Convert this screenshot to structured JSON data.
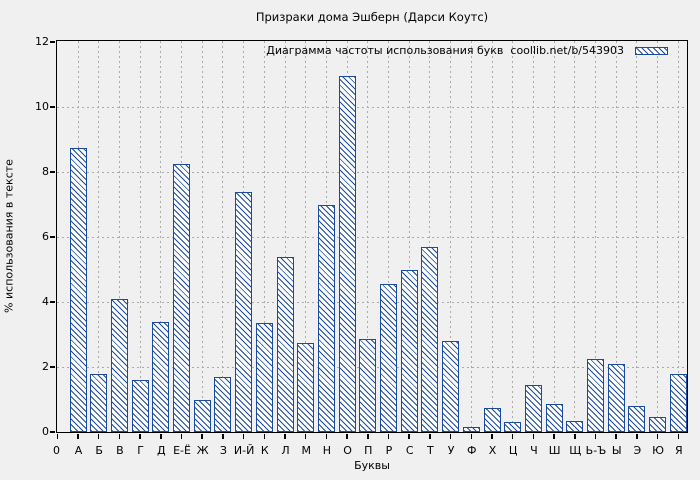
{
  "chart_data": {
    "type": "bar",
    "title": "Призраки дома Эшберн (Дарси Коутс)",
    "legend_label": "Диаграмма частоты использования букв  coollib.net/b/543903",
    "legend_position": "top-right-inside",
    "xlabel": "Буквы",
    "ylabel": "% использования в тексте",
    "ylim": [
      0,
      12
    ],
    "y_ticks": [
      0,
      2,
      4,
      6,
      8,
      10,
      12
    ],
    "x_origin_label": "0",
    "grid": true,
    "categories": [
      "А",
      "Б",
      "В",
      "Г",
      "Д",
      "Е-Ё",
      "Ж",
      "З",
      "И-Й",
      "К",
      "Л",
      "М",
      "Н",
      "О",
      "П",
      "Р",
      "С",
      "Т",
      "У",
      "Ф",
      "Х",
      "Ц",
      "Ч",
      "Ш",
      "Щ",
      "Ь-Ъ",
      "Ы",
      "Э",
      "Ю",
      "Я"
    ],
    "values": [
      8.75,
      1.8,
      4.1,
      1.6,
      3.4,
      8.25,
      1.0,
      1.7,
      7.4,
      3.35,
      5.4,
      2.75,
      7.0,
      10.95,
      2.85,
      4.55,
      5.0,
      5.7,
      2.8,
      0.15,
      0.75,
      0.3,
      1.45,
      0.85,
      0.35,
      2.25,
      2.1,
      0.8,
      0.45,
      1.8
    ]
  },
  "colors": {
    "bar_border": "#1b4b9e",
    "bar_fill": "#ffffff",
    "hatch": "#1b4b9e",
    "grid": "#aaaaaa",
    "background": "#f0f0f0",
    "axis": "#000000",
    "text": "#000000"
  }
}
